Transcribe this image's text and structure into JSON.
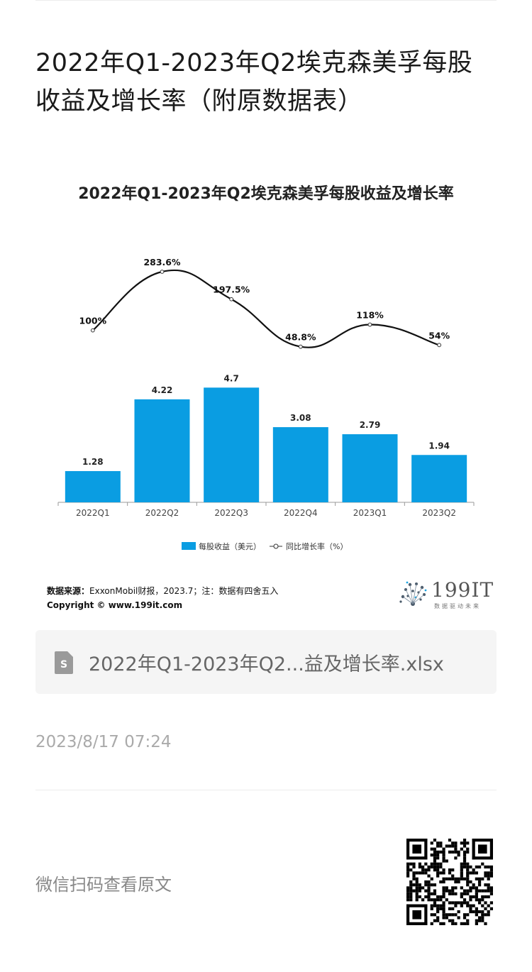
{
  "article": {
    "title": "2022年Q1-2023年Q2埃克森美孚每股收益及增长率（附原数据表）"
  },
  "chart_data": {
    "type": "bar",
    "title": "2022年Q1-2023年Q2埃克森美孚每股收益及增长率",
    "categories": [
      "2022Q1",
      "2022Q2",
      "2022Q3",
      "2022Q4",
      "2023Q1",
      "2023Q2"
    ],
    "series": [
      {
        "name": "每股收益（美元）",
        "type": "bar",
        "values": [
          1.28,
          4.22,
          4.7,
          3.08,
          2.79,
          1.94
        ],
        "labels": [
          "1.28",
          "4.22",
          "4.7",
          "3.08",
          "2.79",
          "1.94"
        ],
        "color": "#0a9de2"
      },
      {
        "name": "同比增长率（%）",
        "type": "line",
        "values": [
          100,
          283.6,
          197.5,
          48.8,
          118,
          54
        ],
        "labels": [
          "100%",
          "283.6%",
          "197.5%",
          "48.8%",
          "118%",
          "54%"
        ],
        "color": "#111111"
      }
    ],
    "grid": false,
    "legend_position": "bottom"
  },
  "source": {
    "label": "数据来源：",
    "text": "ExxonMobil财报，2023.7；注：数据有四舍五入",
    "copyright": "Copyright © www.199it.com"
  },
  "logo": {
    "text": "199IT",
    "subtitle": "数据驱动未来"
  },
  "file": {
    "name": "2022年Q1-2023年Q2...益及增长率.xlsx",
    "icon": "spreadsheet-file-icon",
    "icon_letter": "S"
  },
  "meta": {
    "timestamp": "2023/8/17 07:24"
  },
  "qr": {
    "label": "微信扫码查看原文",
    "icon": "qr-code-icon"
  }
}
